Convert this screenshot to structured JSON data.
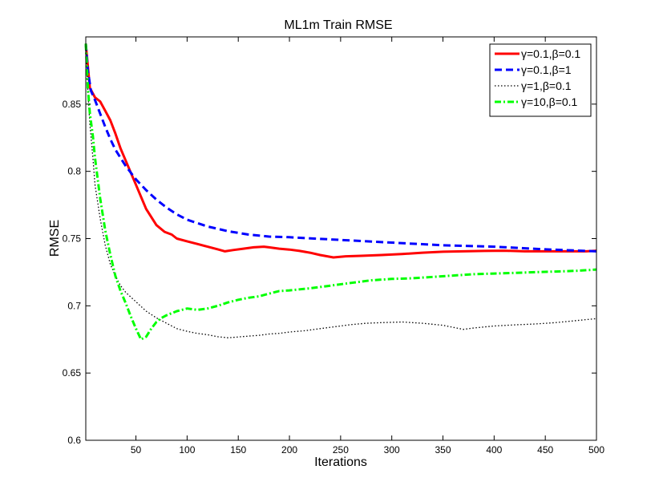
{
  "chart_data": {
    "type": "line",
    "title": "ML1m Train RMSE",
    "xlabel": "Iterations",
    "ylabel": "RMSE",
    "xlim": [
      1,
      500
    ],
    "ylim": [
      0.6,
      0.9
    ],
    "xticks": [
      50,
      100,
      150,
      200,
      250,
      300,
      350,
      400,
      450,
      500
    ],
    "xtick_labels": [
      "50",
      "100",
      "150",
      "200",
      "250",
      "300",
      "350",
      "400",
      "450",
      "500"
    ],
    "yticks": [
      0.6,
      0.65,
      0.7,
      0.75,
      0.8,
      0.85
    ],
    "ytick_labels": [
      "0.6",
      "0.65",
      "0.7",
      "0.75",
      "0.8",
      "0.85"
    ],
    "grid": false,
    "legend_position": "top-right",
    "series": [
      {
        "name": "γ=0.1,β=0.1",
        "color": "#ff0000",
        "dash": "solid",
        "x": [
          1,
          5,
          10,
          15,
          20,
          25,
          30,
          35,
          40,
          50,
          60,
          70,
          78,
          85,
          90,
          100,
          110,
          120,
          130,
          137,
          145,
          155,
          165,
          175,
          180,
          190,
          200,
          210,
          220,
          230,
          243,
          255,
          270,
          290,
          310,
          330,
          350,
          370,
          390,
          410,
          430,
          450,
          470,
          490,
          500
        ],
        "y": [
          0.895,
          0.862,
          0.855,
          0.852,
          0.845,
          0.838,
          0.828,
          0.817,
          0.808,
          0.79,
          0.772,
          0.76,
          0.755,
          0.753,
          0.75,
          0.748,
          0.746,
          0.744,
          0.742,
          0.7405,
          0.7415,
          0.7425,
          0.7435,
          0.744,
          0.7435,
          0.7425,
          0.7418,
          0.7408,
          0.7395,
          0.7378,
          0.736,
          0.7368,
          0.7372,
          0.7378,
          0.7385,
          0.7395,
          0.7402,
          0.7405,
          0.7408,
          0.741,
          0.7405,
          0.7405,
          0.7405,
          0.7405,
          0.741
        ]
      },
      {
        "name": "γ=0.1,β=1",
        "color": "#0000ff",
        "dash": "dashed",
        "x": [
          1,
          3,
          6,
          10,
          15,
          20,
          25,
          30,
          40,
          50,
          60,
          70,
          80,
          90,
          100,
          120,
          140,
          160,
          180,
          200,
          250,
          300,
          350,
          400,
          450,
          500
        ],
        "y": [
          0.895,
          0.875,
          0.86,
          0.853,
          0.843,
          0.833,
          0.824,
          0.816,
          0.804,
          0.794,
          0.786,
          0.779,
          0.773,
          0.768,
          0.764,
          0.759,
          0.7555,
          0.753,
          0.7515,
          0.751,
          0.749,
          0.747,
          0.745,
          0.744,
          0.742,
          0.7405
        ]
      },
      {
        "name": "γ=1,β=0.1",
        "color": "#000000",
        "dash": "dotted",
        "x": [
          1,
          3,
          5,
          8,
          10,
          15,
          20,
          25,
          30,
          35,
          40,
          50,
          60,
          70,
          80,
          90,
          100,
          110,
          120,
          130,
          140,
          150,
          160,
          170,
          180,
          190,
          200,
          215,
          230,
          245,
          260,
          275,
          290,
          310,
          330,
          350,
          360,
          370,
          380,
          400,
          420,
          440,
          460,
          480,
          500
        ],
        "y": [
          0.895,
          0.86,
          0.835,
          0.81,
          0.79,
          0.765,
          0.745,
          0.731,
          0.722,
          0.715,
          0.71,
          0.703,
          0.696,
          0.691,
          0.687,
          0.683,
          0.681,
          0.6795,
          0.6785,
          0.677,
          0.6762,
          0.6768,
          0.6775,
          0.678,
          0.679,
          0.6795,
          0.6805,
          0.6815,
          0.683,
          0.6845,
          0.686,
          0.687,
          0.6875,
          0.688,
          0.687,
          0.6855,
          0.684,
          0.6825,
          0.6835,
          0.685,
          0.6858,
          0.6865,
          0.6875,
          0.689,
          0.6905
        ]
      },
      {
        "name": "γ=10,β=0.1",
        "color": "#00ff00",
        "dash": "dashdot",
        "x": [
          1,
          3,
          5,
          8,
          10,
          15,
          20,
          25,
          30,
          35,
          40,
          45,
          50,
          55,
          60,
          65,
          70,
          75,
          80,
          90,
          100,
          110,
          120,
          130,
          140,
          150,
          160,
          170,
          180,
          190,
          200,
          220,
          240,
          260,
          280,
          300,
          320,
          340,
          360,
          380,
          400,
          420,
          440,
          460,
          480,
          500
        ],
        "y": [
          0.895,
          0.862,
          0.843,
          0.826,
          0.81,
          0.78,
          0.756,
          0.738,
          0.722,
          0.711,
          0.702,
          0.692,
          0.683,
          0.675,
          0.677,
          0.683,
          0.688,
          0.691,
          0.693,
          0.696,
          0.698,
          0.697,
          0.698,
          0.7,
          0.7025,
          0.7045,
          0.706,
          0.707,
          0.709,
          0.711,
          0.7115,
          0.713,
          0.715,
          0.717,
          0.719,
          0.72,
          0.7205,
          0.7215,
          0.7225,
          0.7235,
          0.724,
          0.7245,
          0.725,
          0.7255,
          0.726,
          0.727
        ]
      }
    ]
  }
}
